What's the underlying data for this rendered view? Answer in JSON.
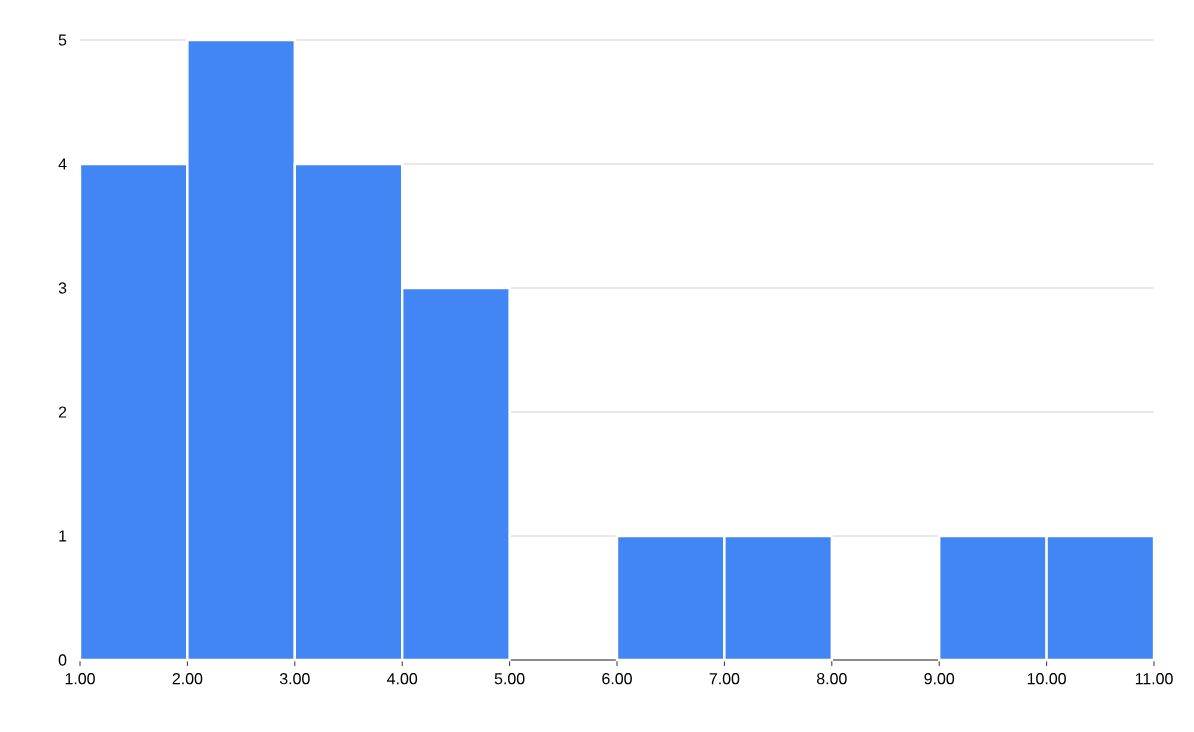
{
  "chart_data": {
    "type": "histogram",
    "bins": [
      1,
      2,
      3,
      4,
      5,
      6,
      7,
      8,
      9,
      10,
      11
    ],
    "values": [
      4,
      5,
      4,
      3,
      0,
      1,
      1,
      0,
      1,
      1
    ],
    "color": "#4285f4",
    "xlim": [
      1,
      11
    ],
    "xticks": [
      {
        "value": 1,
        "label": "1.00"
      },
      {
        "value": 2,
        "label": "2.00"
      },
      {
        "value": 3,
        "label": "3.00"
      },
      {
        "value": 4,
        "label": "4.00"
      },
      {
        "value": 5,
        "label": "5.00"
      },
      {
        "value": 6,
        "label": "6.00"
      },
      {
        "value": 7,
        "label": "7.00"
      },
      {
        "value": 8,
        "label": "8.00"
      },
      {
        "value": 9,
        "label": "9.00"
      },
      {
        "value": 10,
        "label": "10.00"
      },
      {
        "value": 11,
        "label": "11.00"
      }
    ],
    "ylim": [
      0,
      5
    ],
    "yticks": [
      0,
      1,
      2,
      3,
      4,
      5
    ],
    "grid": "y"
  }
}
